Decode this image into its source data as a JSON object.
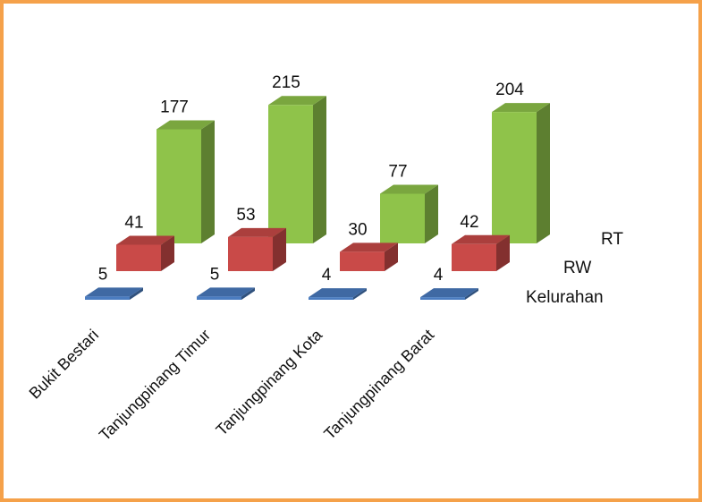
{
  "chart_data": {
    "type": "bar3d",
    "categories": [
      "Bukit Bestari",
      "Tanjungpinang Timur",
      "Tanjungpinang Kota",
      "Tanjungpinang Barat"
    ],
    "series": [
      {
        "name": "Kelurahan",
        "color": "#4a7cc0",
        "values": [
          5,
          5,
          4,
          4
        ]
      },
      {
        "name": "RW",
        "color": "#c94a48",
        "values": [
          41,
          53,
          30,
          42
        ]
      },
      {
        "name": "RT",
        "color": "#8fc34a",
        "values": [
          177,
          215,
          77,
          204
        ]
      }
    ]
  }
}
